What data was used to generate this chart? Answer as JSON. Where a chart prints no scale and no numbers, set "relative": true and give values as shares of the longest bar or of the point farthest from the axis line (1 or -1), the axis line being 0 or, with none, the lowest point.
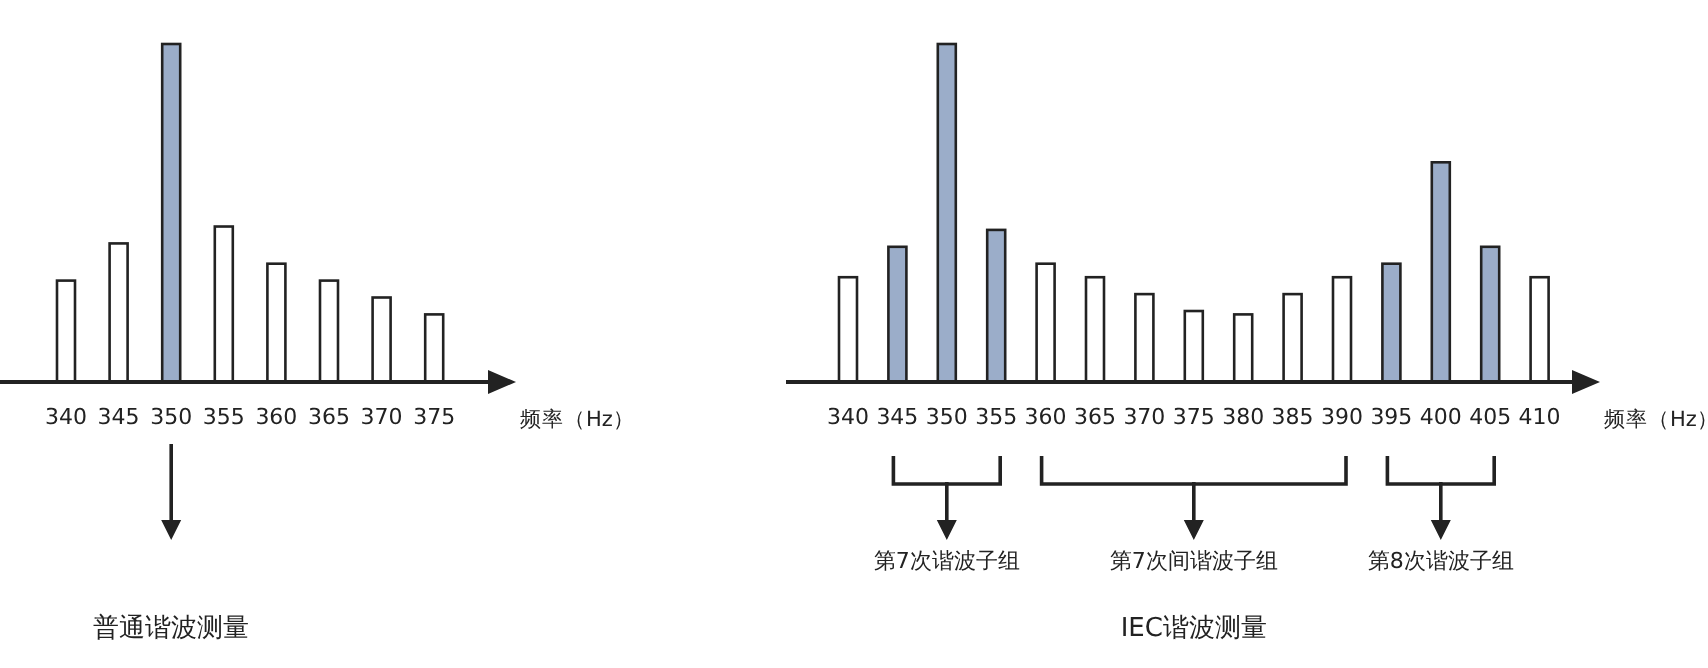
{
  "chart_data": [
    {
      "type": "bar",
      "relative": true,
      "xlabel": "频率（Hz）",
      "categories": [
        "340",
        "345",
        "350",
        "355",
        "360",
        "365",
        "370",
        "375"
      ],
      "values": [
        0.3,
        0.41,
        1,
        0.46,
        0.35,
        0.3,
        0.25,
        0.2
      ],
      "colors": [
        "#ffffff",
        "#ffffff",
        "#9badc9",
        "#ffffff",
        "#ffffff",
        "#ffffff",
        "#ffffff",
        "#ffffff"
      ],
      "annotations": [
        "普通谐波测量"
      ]
    },
    {
      "type": "bar",
      "relative": true,
      "title": "IEC谐波测量",
      "xlabel": "频率（Hz）",
      "categories": [
        "340",
        "345",
        "350",
        "355",
        "360",
        "365",
        "370",
        "375",
        "380",
        "385",
        "390",
        "395",
        "400",
        "405",
        "410"
      ],
      "values": [
        0.31,
        0.4,
        1,
        0.45,
        0.35,
        0.31,
        0.26,
        0.21,
        0.2,
        0.26,
        0.31,
        0.35,
        0.65,
        0.4,
        0.31
      ],
      "colors": [
        "#ffffff",
        "#9badc9",
        "#9badc9",
        "#9badc9",
        "#ffffff",
        "#ffffff",
        "#ffffff",
        "#ffffff",
        "#ffffff",
        "#ffffff",
        "#ffffff",
        "#9badc9",
        "#9badc9",
        "#9badc9",
        "#ffffff"
      ],
      "annotations": [
        "第7次谐波子组",
        "第7次间谐波子组",
        "第8次谐波子组"
      ]
    }
  ]
}
